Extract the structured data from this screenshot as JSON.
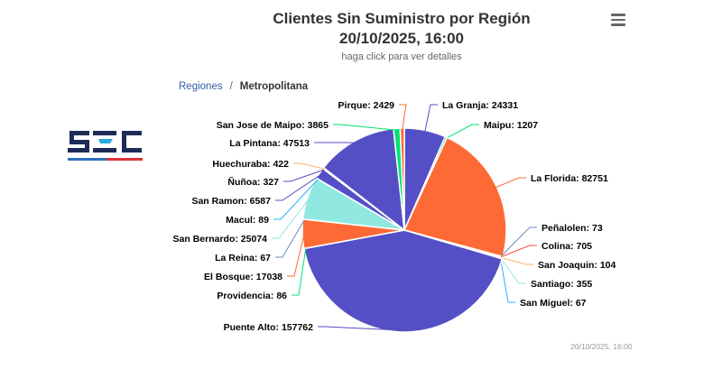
{
  "header": {
    "title_line1": "Clientes Sin Suministro por Región",
    "title_line2": "20/10/2025, 16:00",
    "subtitle": "haga click para ver detalles",
    "menu_icon": "hamburger-icon"
  },
  "breadcrumb": {
    "root": "Regiones",
    "separator": "/",
    "current": "Metropolitana"
  },
  "logo": {
    "text": "SEC",
    "colors": {
      "letters": "#1d2b57",
      "accent": "#29a9e0",
      "bar_left": "#2f6fc0",
      "bar_right": "#e0323c"
    }
  },
  "credits": "20/10/2025, 16:00",
  "chart_data": {
    "type": "pie",
    "title": "Clientes Sin Suministro por Región 20/10/2025, 16:00",
    "subtitle": "haga click para ver detalles",
    "slices": [
      {
        "name": "La Granja",
        "value": 24331,
        "color": "#544fc5"
      },
      {
        "name": "Maipu",
        "value": 1207,
        "color": "#00e272"
      },
      {
        "name": "La Florida",
        "value": 82751,
        "color": "#fe6a35"
      },
      {
        "name": "Peñalolen",
        "value": 73,
        "color": "#6b8abc"
      },
      {
        "name": "Colina",
        "value": 705,
        "color": "#fa4b42"
      },
      {
        "name": "San Joaquin",
        "value": 104,
        "color": "#feb56a"
      },
      {
        "name": "Santiago",
        "value": 355,
        "color": "#91e8e1"
      },
      {
        "name": "San Miguel",
        "value": 67,
        "color": "#2caffe"
      },
      {
        "name": "Puente Alto",
        "value": 157762,
        "color": "#544fc5"
      },
      {
        "name": "Providencia",
        "value": 86,
        "color": "#00e272"
      },
      {
        "name": "El Bosque",
        "value": 17038,
        "color": "#fe6a35"
      },
      {
        "name": "La Reina",
        "value": 67,
        "color": "#6b8abc"
      },
      {
        "name": "San Bernardo",
        "value": 25074,
        "color": "#91e8e1"
      },
      {
        "name": "Macul",
        "value": 89,
        "color": "#2caffe"
      },
      {
        "name": "San Ramon",
        "value": 6587,
        "color": "#544fc5"
      },
      {
        "name": "Ñuñoa",
        "value": 327,
        "color": "#544fc5"
      },
      {
        "name": "Huechuraba",
        "value": 422,
        "color": "#feb56a"
      },
      {
        "name": "La Pintana",
        "value": 47513,
        "color": "#544fc5"
      },
      {
        "name": "San Jose de Maipo",
        "value": 3865,
        "color": "#00e272"
      },
      {
        "name": "Pirque",
        "value": 2429,
        "color": "#fe6a35"
      }
    ]
  }
}
